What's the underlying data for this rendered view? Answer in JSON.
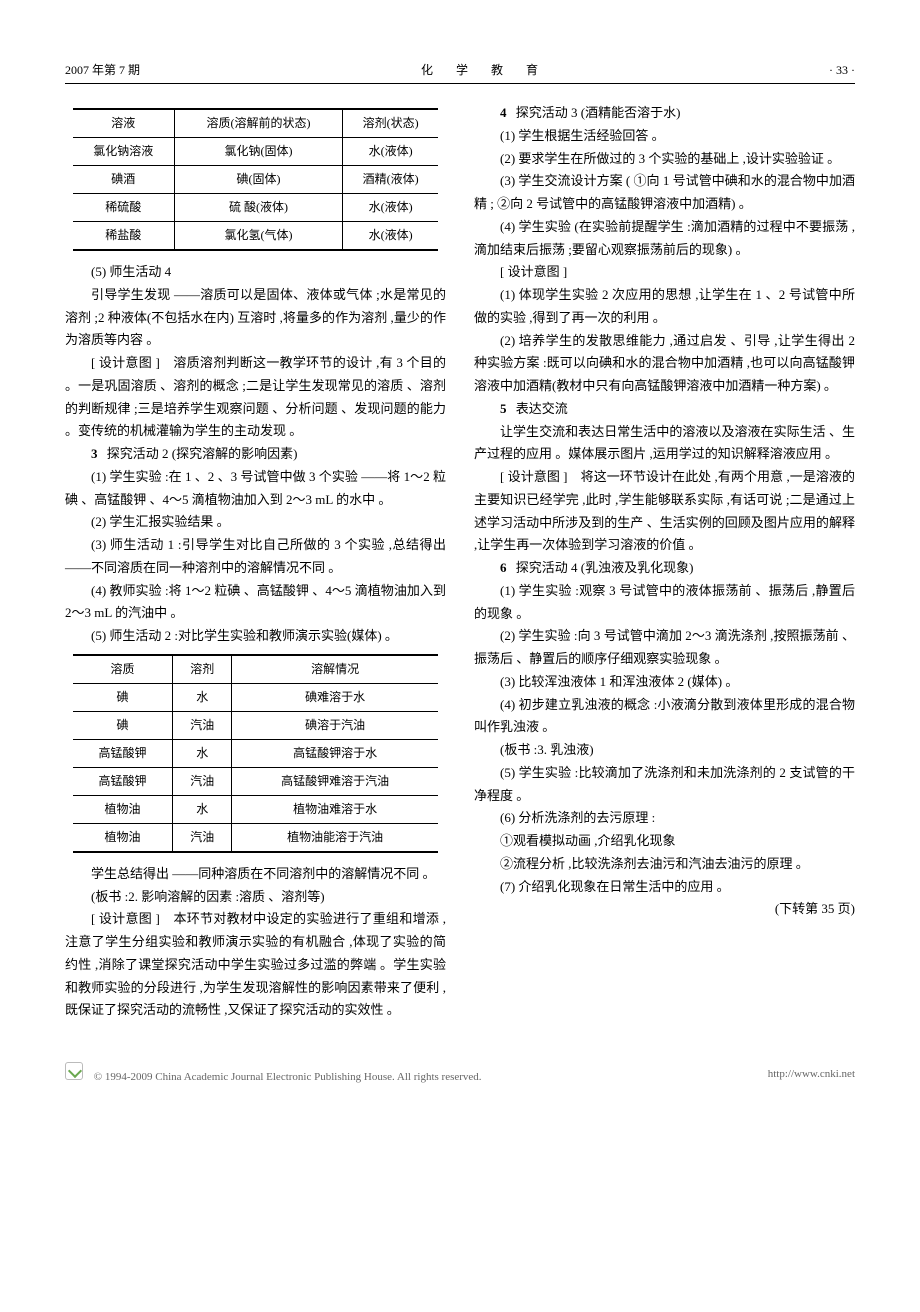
{
  "header": {
    "left": "2007 年第 7 期",
    "center": "化 学 教 育",
    "right": "· 33 ·"
  },
  "table1": {
    "columns": [
      "溶液",
      "溶质(溶解前的状态)",
      "溶剂(状态)"
    ],
    "rows": [
      [
        "氯化钠溶液",
        "氯化钠(固体)",
        "水(液体)"
      ],
      [
        "碘酒",
        "碘(固体)",
        "酒精(液体)"
      ],
      [
        "稀硫酸",
        "硫 酸(液体)",
        "水(液体)"
      ],
      [
        "稀盐酸",
        "氯化氢(气体)",
        "水(液体)"
      ]
    ]
  },
  "left": {
    "p1": "(5) 师生活动 4",
    "p2": "引导学生发现 ——溶质可以是固体、液体或气体 ;水是常见的溶剂 ;2 种液体(不包括水在内) 互溶时 ,将量多的作为溶剂 ,量少的作为溶质等内容 。",
    "p3": "[ 设计意图 ]　溶质溶剂判断这一教学环节的设计 ,有 3 个目的 。一是巩固溶质 、溶剂的概念 ;二是让学生发现常见的溶质 、溶剂的判断规律 ;三是培养学生观察问题 、分析问题 、发现问题的能力 。变传统的机械灌输为学生的主动发现 。",
    "sec3_num": "3",
    "sec3_title": "探究活动 2 (探究溶解的影响因素)",
    "p4": "(1) 学生实验 :在 1 、2 、3 号试管中做 3 个实验 ——将 1～2 粒碘 、高锰酸钾 、4～5 滴植物油加入到 2～3 mL 的水中 。",
    "p5": "(2) 学生汇报实验结果 。",
    "p6": "(3) 师生活动 1 :引导学生对比自己所做的 3 个实验 ,总结得出 ——不同溶质在同一种溶剂中的溶解情况不同 。",
    "p7": "(4) 教师实验 :将 1～2 粒碘 、高锰酸钾 、4～5 滴植物油加入到 2～3 mL 的汽油中 。",
    "p8": "(5) 师生活动 2 :对比学生实验和教师演示实验(媒体) 。",
    "p9": "学生总结得出 ——同种溶质在不同溶剂中的溶解情况不同 。",
    "p10": "(板书 :2. 影响溶解的因素 :溶质 、溶剂等)",
    "p11": "[ 设计意图 ]　本环节对教材中设定的实验进行了重组和增添 ,注意了学生分组实验和教师演示实验的有机融合 ,体现了实验的简约性 ,消除了课堂探究活动中学生实验过多过滥的弊端 。学生实验和教师实验的分段进行 ,为学生发现溶解性的影响因素带来了便利 ,既保证了探究活动的流畅性 ,又保证了探究活动的实效性 。"
  },
  "table2": {
    "columns": [
      "溶质",
      "溶剂",
      "溶解情况"
    ],
    "rows": [
      [
        "碘",
        "水",
        "碘难溶于水"
      ],
      [
        "碘",
        "汽油",
        "碘溶于汽油"
      ],
      [
        "高锰酸钾",
        "水",
        "高锰酸钾溶于水"
      ],
      [
        "高锰酸钾",
        "汽油",
        "高锰酸钾难溶于汽油"
      ],
      [
        "植物油",
        "水",
        "植物油难溶于水"
      ],
      [
        "植物油",
        "汽油",
        "植物油能溶于汽油"
      ]
    ]
  },
  "right": {
    "sec4_num": "4",
    "sec4_title": "探究活动 3 (酒精能否溶于水)",
    "p1": "(1) 学生根据生活经验回答 。",
    "p2": "(2) 要求学生在所做过的 3 个实验的基础上 ,设计实验验证 。",
    "p3": "(3) 学生交流设计方案 ( ①向 1 号试管中碘和水的混合物中加酒精 ; ②向 2 号试管中的高锰酸钾溶液中加酒精) 。",
    "p4": "(4) 学生实验 (在实验前提醒学生 :滴加酒精的过程中不要振荡 ,滴加结束后振荡 ;要留心观察振荡前后的现象) 。",
    "p5": "[ 设计意图 ]",
    "p6": "(1) 体现学生实验 2 次应用的思想 ,让学生在 1 、2 号试管中所做的实验 ,得到了再一次的利用 。",
    "p7": "(2) 培养学生的发散思维能力 ,通过启发 、引导 ,让学生得出 2 种实验方案 :既可以向碘和水的混合物中加酒精 ,也可以向高锰酸钾溶液中加酒精(教材中只有向高锰酸钾溶液中加酒精一种方案) 。",
    "sec5_num": "5",
    "sec5_title": "表达交流",
    "p8": "让学生交流和表达日常生活中的溶液以及溶液在实际生活 、生产过程的应用 。媒体展示图片 ,运用学过的知识解释溶液应用 。",
    "p9": "[ 设计意图 ]　将这一环节设计在此处 ,有两个用意 ,一是溶液的主要知识已经学完 ,此时 ,学生能够联系实际 ,有话可说 ;二是通过上述学习活动中所涉及到的生产 、生活实例的回顾及图片应用的解释 ,让学生再一次体验到学习溶液的价值 。",
    "sec6_num": "6",
    "sec6_title": "探究活动 4 (乳浊液及乳化现象)",
    "p10": "(1) 学生实验 :观察 3 号试管中的液体振荡前 、振荡后 ,静置后的现象 。",
    "p11": "(2) 学生实验 :向 3 号试管中滴加 2～3 滴洗涤剂 ,按照振荡前 、振荡后 、静置后的顺序仔细观察实验现象 。",
    "p12": "(3) 比较浑浊液体 1 和浑浊液体 2 (媒体) 。",
    "p13": "(4) 初步建立乳浊液的概念 :小液滴分散到液体里形成的混合物叫作乳浊液 。",
    "p14": "(板书 :3. 乳浊液)",
    "p15": "(5) 学生实验 :比较滴加了洗涤剂和未加洗涤剂的 2 支试管的干净程度 。",
    "p16": "(6) 分析洗涤剂的去污原理 :",
    "p17": "①观看模拟动画 ,介绍乳化现象",
    "p18": "②流程分析 ,比较洗涤剂去油污和汽油去油污的原理 。",
    "p19": "(7) 介绍乳化现象在日常生活中的应用 。",
    "p20": "(下转第 35 页)"
  },
  "footer": {
    "text": "© 1994-2009 China Academic Journal Electronic Publishing House. All rights reserved.",
    "url": "http://www.cnki.net"
  }
}
